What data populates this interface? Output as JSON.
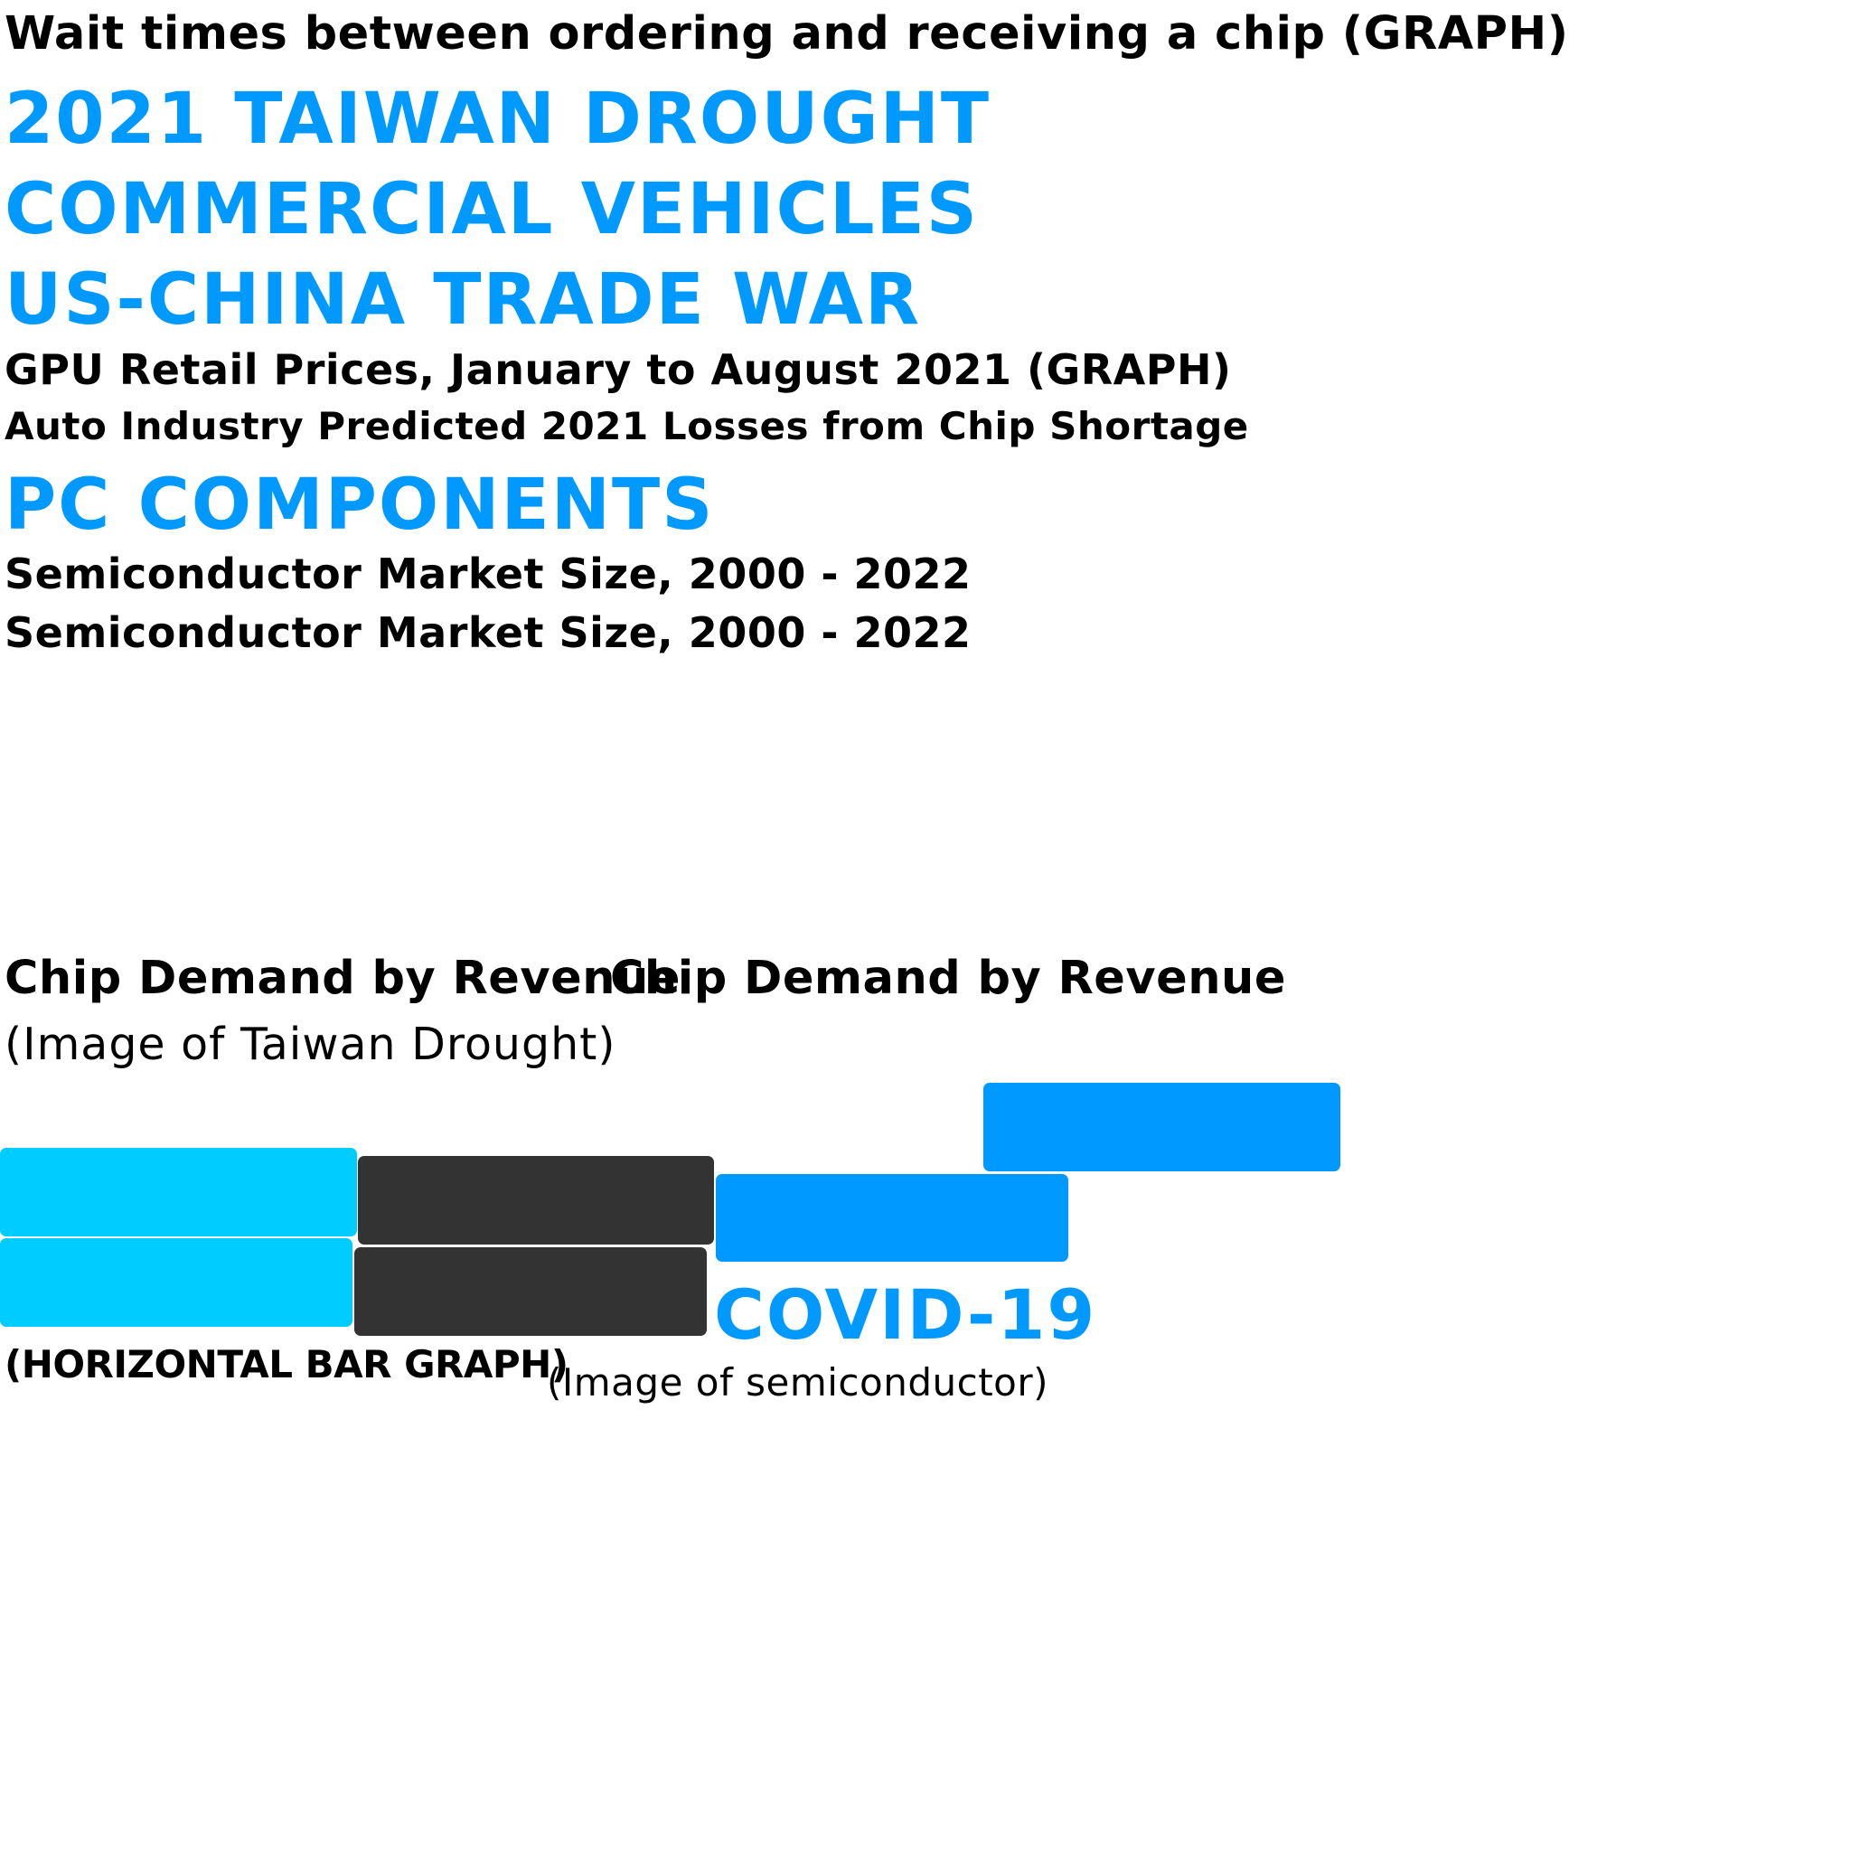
{
  "colors": {
    "accent_blue": "#0099ff",
    "cyan": "#00ccff",
    "dark_gray": "#333333",
    "text_black": "#000000"
  },
  "headings": {
    "wait_times": "Wait times between ordering and receiving a chip (GRAPH)",
    "taiwan_drought": "2021 TAIWAN DROUGHT",
    "commercial_vehicles": "COMMERCIAL VEHICLES",
    "us_china": "US-CHINA TRADE WAR",
    "gpu_prices": "GPU Retail Prices, January to August 2021 (GRAPH)",
    "auto_losses": "Auto Industry Predicted 2021 Losses from Chip Shortage",
    "pc_components": "PC COMPONENTS",
    "market_size_1": "Semiconductor Market Size, 2000 - 2022",
    "market_size_2": "Semiconductor Market Size, 2000 - 2022",
    "chip_demand_1": "Chip Demand by Revenue",
    "chip_demand_2": "Chip Demand by Revenue",
    "taiwan_image": "(Image of Taiwan Drought)",
    "covid": "COVID-19",
    "horizontal_bar": "(HORIZONTAL BAR GRAPH)",
    "semiconductor_image": "(Image of semiconductor)"
  },
  "blocks": [
    {
      "name": "cyan-block-top",
      "color": "cyan"
    },
    {
      "name": "dark-block-top",
      "color": "dark_gray"
    },
    {
      "name": "blue-block-middle",
      "color": "accent_blue"
    },
    {
      "name": "blue-block-upper-right",
      "color": "accent_blue"
    },
    {
      "name": "cyan-block-bottom",
      "color": "cyan"
    },
    {
      "name": "dark-block-bottom",
      "color": "dark_gray"
    }
  ]
}
